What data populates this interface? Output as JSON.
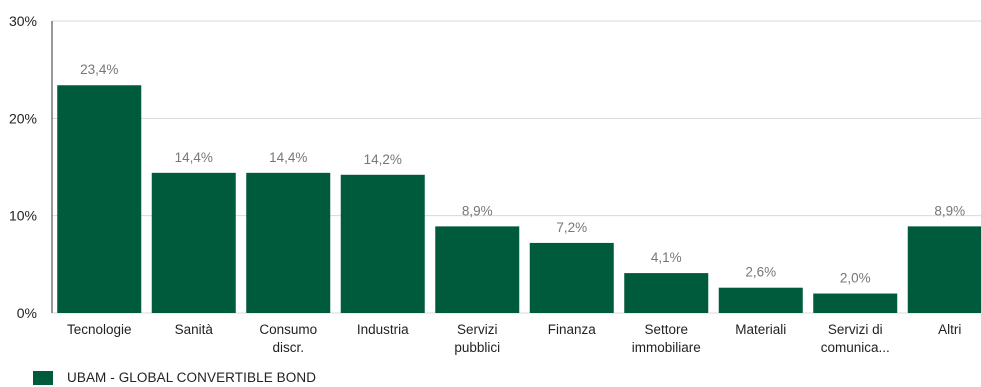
{
  "chart_data": {
    "type": "bar",
    "categories": [
      [
        "Tecnologie"
      ],
      [
        "Sanità"
      ],
      [
        "Consumo",
        "discr."
      ],
      [
        "Industria"
      ],
      [
        "Servizi",
        "pubblici"
      ],
      [
        "Finanza"
      ],
      [
        "Settore",
        "immobiliare"
      ],
      [
        "Materiali"
      ],
      [
        "Servizi di",
        "comunica..."
      ],
      [
        "Altri"
      ]
    ],
    "series": [
      {
        "name": "UBAM - GLOBAL CONVERTIBLE BOND",
        "values": [
          23.4,
          14.4,
          14.4,
          14.2,
          8.9,
          7.2,
          4.1,
          2.6,
          2.0,
          8.9
        ],
        "data_labels": [
          "23,4%",
          "14,4%",
          "14,4%",
          "14,2%",
          "8,9%",
          "7,2%",
          "4,1%",
          "2,6%",
          "2,0%",
          "8,9%"
        ],
        "color": "#005a3c"
      }
    ],
    "y_ticks": [
      0,
      10,
      20,
      30
    ],
    "y_tick_labels": [
      "0%",
      "10%",
      "20%",
      "30%"
    ],
    "ylim": [
      0,
      30
    ],
    "grid": true,
    "legend_position": "bottom-left",
    "title": "",
    "xlabel": "",
    "ylabel": ""
  },
  "colors": {
    "bar": "#005a3c",
    "grid": "#d9d9d9",
    "value_label": "#777777",
    "text": "#222222"
  }
}
